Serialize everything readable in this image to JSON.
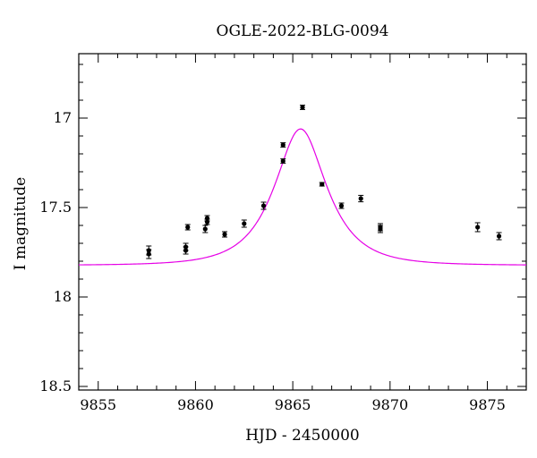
{
  "chart_data": {
    "type": "scatter",
    "title": "OGLE-2022-BLG-0094",
    "xlabel": "HJD - 2450000",
    "ylabel": "I magnitude",
    "xlim": [
      9854,
      9877
    ],
    "ylim": [
      18.52,
      16.64
    ],
    "y_inverted": true,
    "x_ticks": [
      9855,
      9860,
      9865,
      9870,
      9875
    ],
    "x_tick_labels": [
      "9855",
      "9860",
      "9865",
      "9870",
      "9875"
    ],
    "y_ticks": [
      17,
      17.5,
      18,
      18.5
    ],
    "y_tick_labels": [
      "17",
      "17.5",
      "18",
      "18.5"
    ],
    "grid": false,
    "colors": {
      "model": "#e600e6",
      "points": "#000000"
    },
    "series": [
      {
        "type": "scatter",
        "x": [
          9857.6,
          9857.6,
          9859.5,
          9859.5,
          9859.6,
          9860.5,
          9860.6,
          9860.6,
          9861.5,
          9862.5,
          9863.5,
          9864.5,
          9864.5,
          9865.5,
          9866.5,
          9867.5,
          9868.5,
          9869.5,
          9869.5,
          9874.5,
          9875.6
        ],
        "y": [
          17.74,
          17.76,
          17.72,
          17.74,
          17.61,
          17.62,
          17.58,
          17.56,
          17.65,
          17.59,
          17.49,
          17.24,
          17.15,
          16.94,
          17.37,
          17.49,
          17.45,
          17.61,
          17.62,
          17.61,
          17.66
        ],
        "yerr": [
          0.025,
          0.025,
          0.02,
          0.02,
          0.015,
          0.02,
          0.015,
          0.015,
          0.015,
          0.02,
          0.02,
          0.012,
          0.012,
          0.012,
          0.01,
          0.015,
          0.018,
          0.02,
          0.02,
          0.025,
          0.02
        ]
      },
      {
        "type": "line",
        "model": {
          "t0": 9865.4,
          "tE": 2.2,
          "u0": 0.55,
          "base_mag": 17.823
        }
      }
    ]
  }
}
